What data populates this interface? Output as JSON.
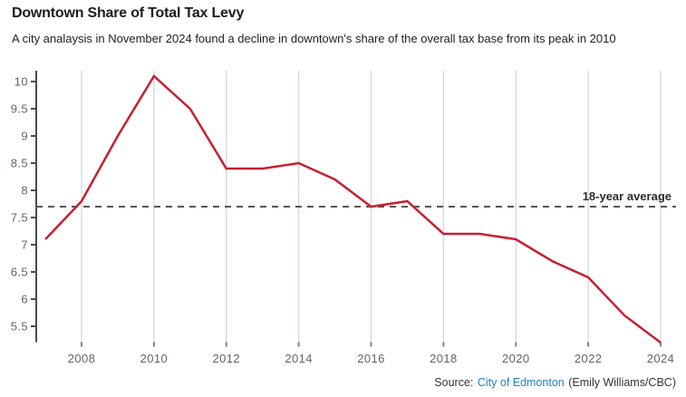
{
  "header": {
    "title": "Downtown Share of Total Tax Levy",
    "subtitle": "A city analaysis in November 2024 found a decline in downtown's share of the overall tax base from its peak in 2010"
  },
  "chart_data": {
    "type": "line",
    "title": "Downtown Share of Total Tax Levy",
    "series_name": "Downtown share of total tax levy (percent)",
    "x": [
      2007,
      2008,
      2009,
      2010,
      2011,
      2012,
      2013,
      2014,
      2015,
      2016,
      2017,
      2018,
      2019,
      2020,
      2021,
      2022,
      2023,
      2024
    ],
    "values": [
      7.1,
      7.8,
      9.0,
      10.1,
      9.5,
      8.4,
      8.4,
      8.5,
      8.2,
      7.7,
      7.8,
      7.2,
      7.2,
      7.1,
      6.7,
      6.4,
      5.7,
      5.2
    ],
    "x_ticks": [
      2008,
      2010,
      2012,
      2014,
      2016,
      2018,
      2020,
      2022,
      2024
    ],
    "y_ticks": [
      5.5,
      6,
      6.5,
      7,
      7.5,
      8,
      8.5,
      9,
      9.5,
      10
    ],
    "xlim": [
      2007,
      2024.4
    ],
    "ylim": [
      5.2,
      10.2
    ],
    "grid": "vertical-only",
    "legend": "none",
    "average_line": {
      "value": 7.7,
      "label": "18-year average",
      "style": "dashed"
    },
    "colors": {
      "line": "#c52032",
      "average": "#555555",
      "grid": "#cfd9dd",
      "axis": "#4c4c4c",
      "bottom_tick": "#7c848a"
    }
  },
  "footer": {
    "source_prefix": "Source:",
    "source_link": "City of Edmonton",
    "source_suffix": "(Emily Williams/CBC)"
  }
}
